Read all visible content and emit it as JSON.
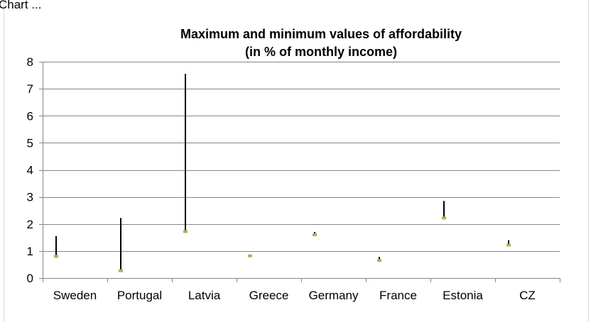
{
  "page_title_fragment": "Chart ...",
  "chart_data": {
    "type": "high-low",
    "title": "Maximum and minimum values of affordability",
    "subtitle": "(in % of monthly income)",
    "categories": [
      "Sweden",
      "Portugal",
      "Latvia",
      "Greece",
      "Germany",
      "France",
      "Estonia",
      "CZ"
    ],
    "series": [
      {
        "name": "",
        "role": "max",
        "values": [
          1.55,
          2.22,
          7.55,
          0.85,
          1.7,
          0.78,
          2.85,
          1.4
        ]
      },
      {
        "name": "",
        "role": "min",
        "values": [
          0.8,
          0.27,
          1.72,
          0.82,
          1.6,
          0.65,
          2.22,
          1.22
        ]
      }
    ],
    "ylim": [
      0,
      8
    ],
    "yticks": [
      0,
      1,
      2,
      3,
      4,
      5,
      6,
      7,
      8
    ],
    "xlabel": "",
    "ylabel": "",
    "grid": true,
    "legend": "none",
    "colors": {
      "range_line": "#000000",
      "min_marker": "#9bbb59",
      "grid": "#868686"
    }
  }
}
